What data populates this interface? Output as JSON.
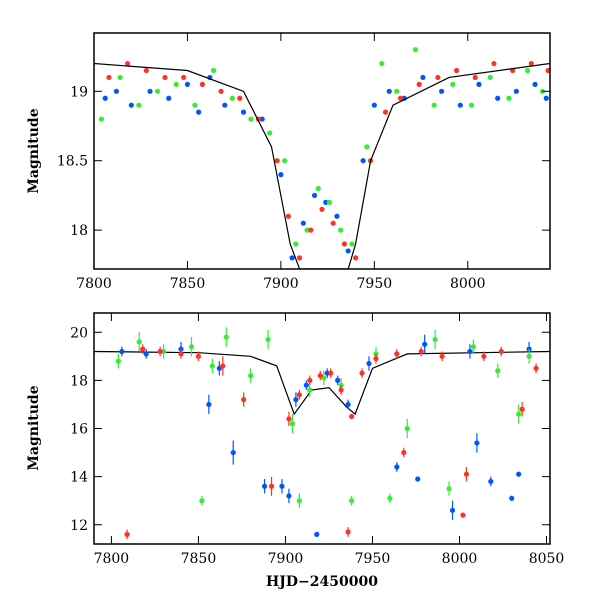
{
  "colors": {
    "blue": "#0055ff",
    "green": "#33ee33",
    "red": "#ff3322",
    "model": "#000000"
  },
  "chart_data": [
    {
      "type": "scatter",
      "panel": "top",
      "xlabel": "",
      "ylabel": "Magnitude",
      "xlim": [
        7800,
        8044
      ],
      "ylim": [
        19.42,
        17.72
      ],
      "y_inverted": true,
      "x_ticks": [
        7800,
        7850,
        7900,
        7950,
        8000
      ],
      "y_ticks": [
        18,
        18.5,
        19
      ],
      "grid": false,
      "legend": "none",
      "series": [
        {
          "color_key": "blue",
          "x": [
            7806,
            7812,
            7820,
            7830,
            7840,
            7850,
            7856,
            7862,
            7870,
            7880,
            7890,
            7900,
            7906,
            7912,
            7918,
            7924,
            7930,
            7936,
            7944,
            7950,
            7958,
            7966,
            7976,
            7986,
            7996,
            8006,
            8016,
            8026,
            8036,
            8042
          ],
          "y": [
            18.95,
            19.0,
            18.9,
            19.0,
            18.95,
            19.05,
            18.85,
            19.1,
            18.9,
            18.85,
            18.8,
            18.4,
            17.8,
            18.05,
            18.25,
            18.2,
            18.1,
            17.85,
            18.5,
            18.9,
            19.0,
            18.95,
            19.1,
            19.0,
            18.9,
            19.05,
            18.95,
            19.0,
            19.05,
            18.95
          ]
        },
        {
          "color_key": "green",
          "x": [
            7804,
            7814,
            7824,
            7834,
            7844,
            7854,
            7864,
            7874,
            7884,
            7894,
            7902,
            7908,
            7914,
            7920,
            7926,
            7932,
            7938,
            7946,
            7954,
            7962,
            7972,
            7982,
            7992,
            8002,
            8012,
            8022,
            8032,
            8040
          ],
          "y": [
            18.8,
            19.1,
            18.9,
            19.0,
            19.05,
            18.9,
            19.15,
            18.95,
            18.8,
            18.7,
            18.5,
            17.9,
            18.0,
            18.3,
            18.2,
            18.0,
            17.9,
            18.6,
            19.2,
            19.0,
            19.3,
            18.9,
            19.05,
            18.9,
            19.1,
            18.95,
            19.15,
            19.0
          ]
        },
        {
          "color_key": "red",
          "x": [
            7808,
            7818,
            7828,
            7838,
            7848,
            7858,
            7868,
            7878,
            7888,
            7898,
            7904,
            7910,
            7916,
            7922,
            7928,
            7934,
            7940,
            7948,
            7956,
            7964,
            7974,
            7984,
            7994,
            8004,
            8014,
            8024,
            8034,
            8043
          ],
          "y": [
            19.1,
            19.2,
            19.15,
            19.1,
            19.1,
            19.05,
            19.0,
            18.95,
            18.8,
            18.5,
            18.1,
            17.8,
            18.0,
            18.15,
            18.05,
            17.9,
            17.8,
            18.5,
            18.85,
            18.95,
            19.05,
            19.1,
            19.15,
            19.1,
            19.2,
            19.15,
            19.2,
            19.15
          ]
        }
      ],
      "model_curve": {
        "x": [
          7800,
          7850,
          7880,
          7895,
          7905,
          7910,
          7920,
          7930,
          7936,
          7940,
          7948,
          7960,
          7990,
          8044
        ],
        "y": [
          19.2,
          19.15,
          19.0,
          18.6,
          17.9,
          17.72,
          17.72,
          17.72,
          17.72,
          17.9,
          18.5,
          18.9,
          19.1,
          19.2
        ]
      }
    },
    {
      "type": "scatter",
      "panel": "bottom",
      "xlabel": "HJD−2450000",
      "ylabel": "Magnitude",
      "xlim": [
        7790,
        8052
      ],
      "ylim": [
        20.8,
        11.2
      ],
      "y_inverted": true,
      "x_ticks": [
        7800,
        7850,
        7900,
        7950,
        8000,
        8050
      ],
      "y_ticks": [
        12,
        14,
        16,
        18,
        20
      ],
      "grid": false,
      "legend": "none",
      "series": [
        {
          "color_key": "blue",
          "x": [
            7806,
            7820,
            7840,
            7856,
            7862,
            7870,
            7888,
            7898,
            7902,
            7906,
            7912,
            7918,
            7924,
            7930,
            7936,
            7948,
            7964,
            7976,
            7980,
            7996,
            8006,
            8010,
            8018,
            8030,
            8034,
            8040
          ],
          "y": [
            19.2,
            19.1,
            19.3,
            17.0,
            18.5,
            15.0,
            13.6,
            13.6,
            13.2,
            17.2,
            17.8,
            11.6,
            18.3,
            18.0,
            17.0,
            18.7,
            14.4,
            13.9,
            19.5,
            12.6,
            19.2,
            15.4,
            13.8,
            13.1,
            14.1,
            19.3
          ],
          "err": [
            0.2,
            0.2,
            0.3,
            0.4,
            0.3,
            0.5,
            0.3,
            0.3,
            0.3,
            0.3,
            0.2,
            0.1,
            0.2,
            0.2,
            0.2,
            0.3,
            0.2,
            0.1,
            0.4,
            0.4,
            0.3,
            0.4,
            0.2,
            0.1,
            0.1,
            0.3
          ]
        },
        {
          "color_key": "green",
          "x": [
            7804,
            7816,
            7830,
            7846,
            7852,
            7858,
            7866,
            7880,
            7890,
            7904,
            7908,
            7914,
            7922,
            7932,
            7938,
            7952,
            7960,
            7970,
            7986,
            7994,
            8008,
            8022,
            8034,
            8040
          ],
          "y": [
            18.8,
            19.6,
            19.2,
            19.4,
            13.0,
            18.6,
            19.8,
            18.2,
            19.7,
            16.2,
            13.0,
            17.6,
            18.1,
            17.8,
            13.0,
            19.1,
            13.1,
            16.0,
            19.7,
            13.5,
            19.4,
            18.4,
            16.6,
            19.0
          ],
          "err": [
            0.3,
            0.4,
            0.3,
            0.4,
            0.2,
            0.3,
            0.4,
            0.3,
            0.4,
            0.4,
            0.3,
            0.3,
            0.3,
            0.3,
            0.2,
            0.3,
            0.2,
            0.4,
            0.4,
            0.3,
            0.3,
            0.3,
            0.4,
            0.3
          ]
        },
        {
          "color_key": "red",
          "x": [
            7809,
            7818,
            7828,
            7840,
            7850,
            7864,
            7876,
            7892,
            7902,
            7908,
            7914,
            7920,
            7926,
            7932,
            7936,
            7938,
            7944,
            7952,
            7964,
            7968,
            7978,
            7990,
            8002,
            8004,
            8014,
            8024,
            8036,
            8044
          ],
          "y": [
            11.6,
            19.3,
            19.2,
            19.1,
            19.0,
            18.6,
            17.2,
            13.6,
            16.4,
            17.4,
            18.0,
            18.2,
            18.3,
            17.6,
            11.7,
            16.5,
            18.3,
            18.9,
            19.1,
            15.0,
            19.2,
            19.0,
            12.4,
            14.1,
            19.0,
            19.2,
            16.8,
            18.5
          ],
          "err": [
            0.2,
            0.2,
            0.2,
            0.2,
            0.2,
            0.4,
            0.3,
            0.4,
            0.3,
            0.2,
            0.2,
            0.2,
            0.2,
            0.2,
            0.2,
            0.1,
            0.2,
            0.2,
            0.2,
            0.2,
            0.2,
            0.2,
            0.1,
            0.3,
            0.2,
            0.2,
            0.3,
            0.2
          ]
        }
      ],
      "model_curve": {
        "x": [
          7790,
          7850,
          7880,
          7895,
          7905,
          7915,
          7925,
          7935,
          7940,
          7950,
          7970,
          8052
        ],
        "y": [
          19.2,
          19.15,
          19.0,
          18.6,
          16.6,
          17.6,
          17.7,
          16.9,
          16.6,
          18.5,
          19.1,
          19.2
        ]
      }
    }
  ]
}
